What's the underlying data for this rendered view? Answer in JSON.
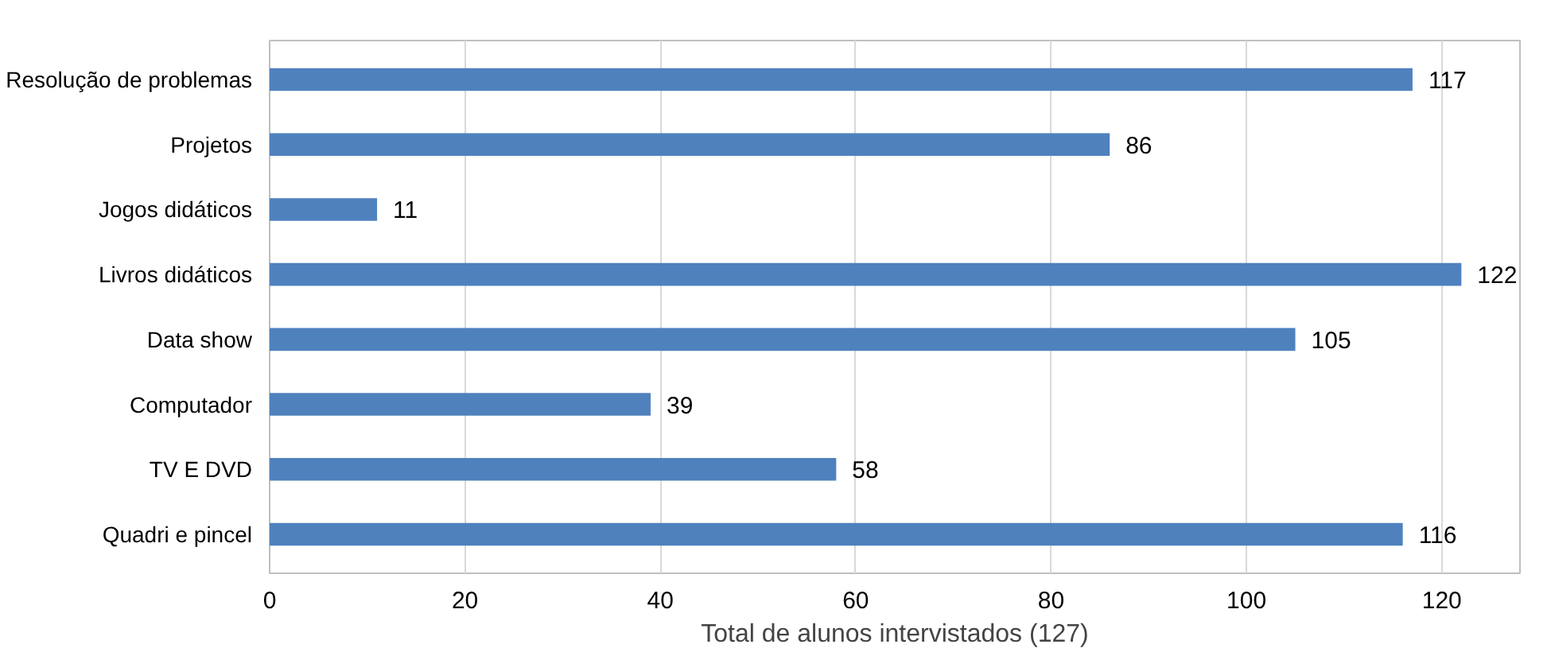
{
  "chart_data": {
    "type": "bar",
    "orientation": "horizontal",
    "categories": [
      "Resolução de problemas",
      "Projetos",
      "Jogos didáticos",
      "Livros didáticos",
      "Data show",
      "Computador",
      "TV E DVD",
      "Quadri e pincel"
    ],
    "values": [
      117,
      86,
      11,
      122,
      105,
      39,
      58,
      116
    ],
    "color": "#4f81bd",
    "xlabel": "Total de alunos intervistados (127)",
    "xlim": [
      0,
      128
    ],
    "xticks": [
      0,
      20,
      40,
      60,
      80,
      100,
      120
    ],
    "grid": "x",
    "data_labels": true
  }
}
